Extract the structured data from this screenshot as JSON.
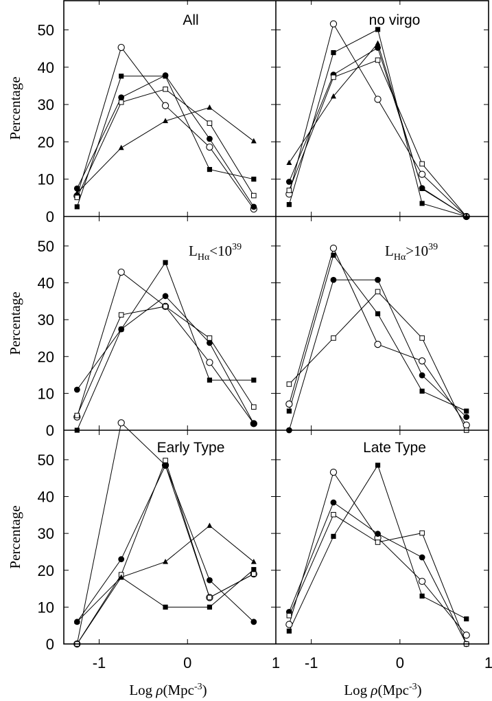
{
  "chart_data": {
    "type": "line",
    "ylabel": "Percentage",
    "xlabel_prefix": "Log ",
    "xlabel_rho": "ρ",
    "xlabel_unit": "(Mpc",
    "xlabel_exp": "-3",
    "xlabel_close": ")",
    "xlim": [
      -1.4,
      1.0
    ],
    "ylim": [
      0,
      58
    ],
    "x_ticks": [
      -1,
      0,
      1
    ],
    "x_tick_labels": [
      "-1",
      "0",
      "1"
    ],
    "y_ticks": [
      0,
      10,
      20,
      30,
      40,
      50
    ],
    "y_tick_labels": [
      "0",
      "10",
      "20",
      "30",
      "40",
      "50"
    ],
    "x": [
      -1.25,
      -0.75,
      -0.25,
      0.25,
      0.75
    ],
    "panels": [
      {
        "label": "All",
        "series": [
          {
            "marker": "open-circle",
            "values": [
              5.5,
              45.3,
              29.7,
              18.6,
              2
            ]
          },
          {
            "marker": "filled-circle",
            "values": [
              7.5,
              31.9,
              37.8,
              20.8,
              2.6
            ]
          },
          {
            "marker": "filled-square",
            "values": [
              2.6,
              37.6,
              37.6,
              12.6,
              10
            ]
          },
          {
            "marker": "open-square",
            "values": [
              5.1,
              30.6,
              34.1,
              25,
              5.6
            ]
          },
          {
            "marker": "filled-triangle",
            "values": [
              6.3,
              18.4,
              25.6,
              29.2,
              20.2
            ]
          }
        ]
      },
      {
        "label": "no virgo",
        "series": [
          {
            "marker": "open-circle",
            "values": [
              6,
              51.6,
              31.4,
              11.3,
              0
            ]
          },
          {
            "marker": "filled-circle",
            "values": [
              9.3,
              38,
              45.2,
              7.6,
              0
            ]
          },
          {
            "marker": "filled-square",
            "values": [
              3.2,
              43.9,
              50.1,
              3.5,
              0
            ]
          },
          {
            "marker": "open-square",
            "values": [
              7,
              37.3,
              41.9,
              14.1,
              0
            ]
          },
          {
            "marker": "filled-triangle",
            "values": [
              14.4,
              32.2,
              46.4,
              7.4,
              0
            ]
          }
        ]
      },
      {
        "label_main": "L",
        "label_sub": "Hα",
        "label_rel": "<10",
        "label_exp": "39",
        "series": [
          {
            "marker": "open-circle",
            "values": [
              3.6,
              42.9,
              33.6,
              18.4,
              1.8
            ]
          },
          {
            "marker": "filled-circle",
            "values": [
              11,
              27.4,
              36.4,
              23.7,
              1.8
            ]
          },
          {
            "marker": "filled-square",
            "values": [
              0,
              27.4,
              45.5,
              13.6,
              13.6
            ]
          },
          {
            "marker": "open-square",
            "values": [
              4,
              31.3,
              33.6,
              25,
              6.3
            ]
          }
        ]
      },
      {
        "label_main": "L",
        "label_sub": "Hα",
        "label_rel": ">10",
        "label_exp": "39",
        "series": [
          {
            "marker": "open-circle",
            "values": [
              7.1,
              49.4,
              23.3,
              18.8,
              1.4
            ]
          },
          {
            "marker": "filled-circle",
            "values": [
              0,
              40.8,
              40.8,
              14.9,
              3.6
            ]
          },
          {
            "marker": "filled-square",
            "values": [
              5.2,
              47.5,
              31.6,
              10.6,
              5.2
            ]
          },
          {
            "marker": "open-square",
            "values": [
              12.5,
              25,
              37.6,
              25,
              0
            ]
          }
        ]
      },
      {
        "label": "Early Type",
        "series": [
          {
            "marker": "open-circle",
            "values": [
              0,
              60,
              48.5,
              12.6,
              19
            ]
          },
          {
            "marker": "filled-circle",
            "values": [
              6,
              23,
              48.5,
              17.3,
              6
            ]
          },
          {
            "marker": "filled-square",
            "values": [
              0,
              18.1,
              10,
              10,
              20.2
            ]
          },
          {
            "marker": "open-square",
            "values": [
              0,
              18.8,
              49.8,
              12.6,
              19
            ]
          },
          {
            "marker": "filled-triangle",
            "values": [
              6,
              18.1,
              22.3,
              32.1,
              22.3
            ]
          }
        ]
      },
      {
        "label": "Late Type",
        "series": [
          {
            "marker": "open-circle",
            "values": [
              5.3,
              46.6,
              28.8,
              17,
              2.4
            ]
          },
          {
            "marker": "filled-circle",
            "values": [
              8.7,
              38.4,
              29.9,
              23.5,
              0
            ]
          },
          {
            "marker": "filled-square",
            "values": [
              3.5,
              29.2,
              48.5,
              13,
              6.8
            ]
          },
          {
            "marker": "open-square",
            "values": [
              7.7,
              35.1,
              27.6,
              30.1,
              0
            ]
          }
        ]
      }
    ]
  }
}
